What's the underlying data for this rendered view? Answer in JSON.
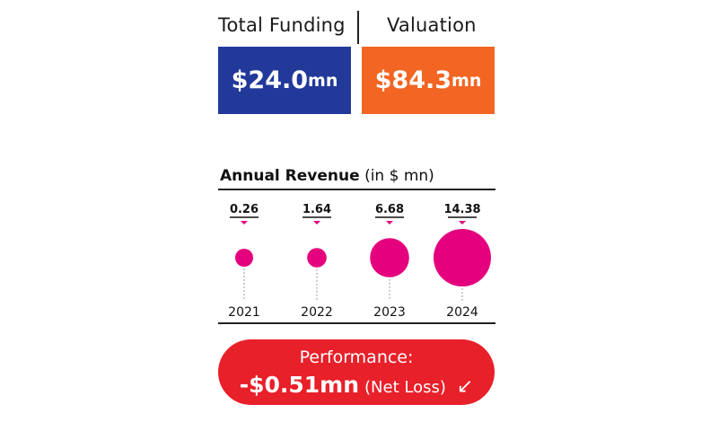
{
  "funding": {
    "label": "Total Funding",
    "value": "$24.0",
    "unit": "mn"
  },
  "valuation": {
    "label": "Valuation",
    "value": "$84.3",
    "unit": "mn"
  },
  "revenue": {
    "title_bold": "Annual Revenue",
    "title_unit": "(in $ mn)"
  },
  "performance": {
    "label": "Performance:",
    "value": "-$0.51mn",
    "note": "(Net Loss)",
    "icon": "arrow-down-left-icon"
  },
  "colors": {
    "funding": "#22399a",
    "valuation": "#f26522",
    "bubble": "#e5007d",
    "performance": "#e8202a"
  },
  "chart_data": {
    "type": "scatter",
    "title": "Annual Revenue (in $ mn)",
    "categories": [
      "2021",
      "2022",
      "2023",
      "2024"
    ],
    "values": [
      0.26,
      1.64,
      6.68,
      14.38
    ],
    "value_labels": [
      "0.26",
      "1.64",
      "6.68",
      "14.38"
    ]
  }
}
